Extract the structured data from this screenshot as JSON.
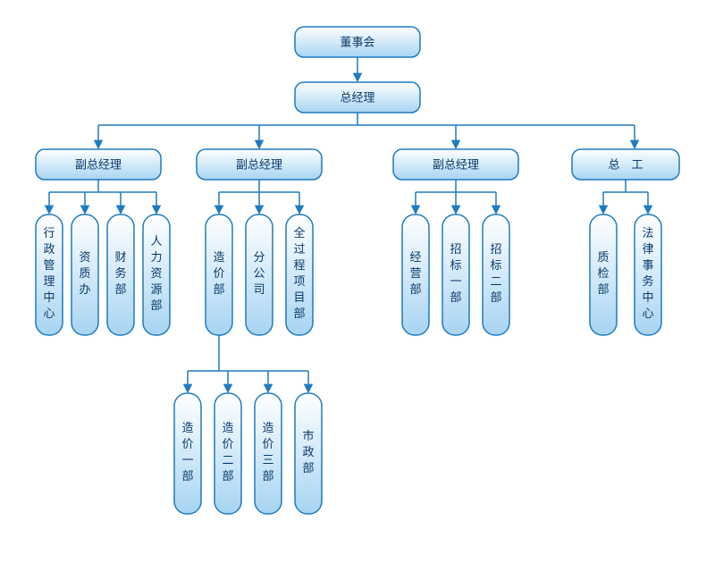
{
  "chart": {
    "type": "org-tree",
    "background_color": "#ffffff",
    "border_color": "#1f7bbf",
    "gradient_top": "#ffffff",
    "gradient_bottom": "#a7d4f2",
    "text_color": "#0a3a6a",
    "font_size": 13,
    "arrow_color": "#1f7bbf",
    "nodes": {
      "root": {
        "label": "董事会"
      },
      "gm": {
        "label": "总经理"
      },
      "vgm1": {
        "label": "副总经理"
      },
      "vgm2": {
        "label": "副总经理"
      },
      "vgm3": {
        "label": "副总经理"
      },
      "chief": {
        "label": "总　工"
      },
      "d_admin": {
        "label": "行政管理中心"
      },
      "d_zizhi": {
        "label": "资质办"
      },
      "d_finance": {
        "label": "财务部"
      },
      "d_hr": {
        "label": "人力资源部"
      },
      "d_cost": {
        "label": "造价部"
      },
      "d_branch": {
        "label": "分公司"
      },
      "d_project": {
        "label": "全过程项目部"
      },
      "d_biz": {
        "label": "经营部"
      },
      "d_bid1": {
        "label": "招标一部"
      },
      "d_bid2": {
        "label": "招标二部"
      },
      "d_qc": {
        "label": "质检部"
      },
      "d_legal": {
        "label": "法律事务中心"
      },
      "d_cost1": {
        "label": "造价一部"
      },
      "d_cost2": {
        "label": "造价二部"
      },
      "d_cost3": {
        "label": "造价三部"
      },
      "d_muni": {
        "label": "市政部"
      }
    }
  }
}
